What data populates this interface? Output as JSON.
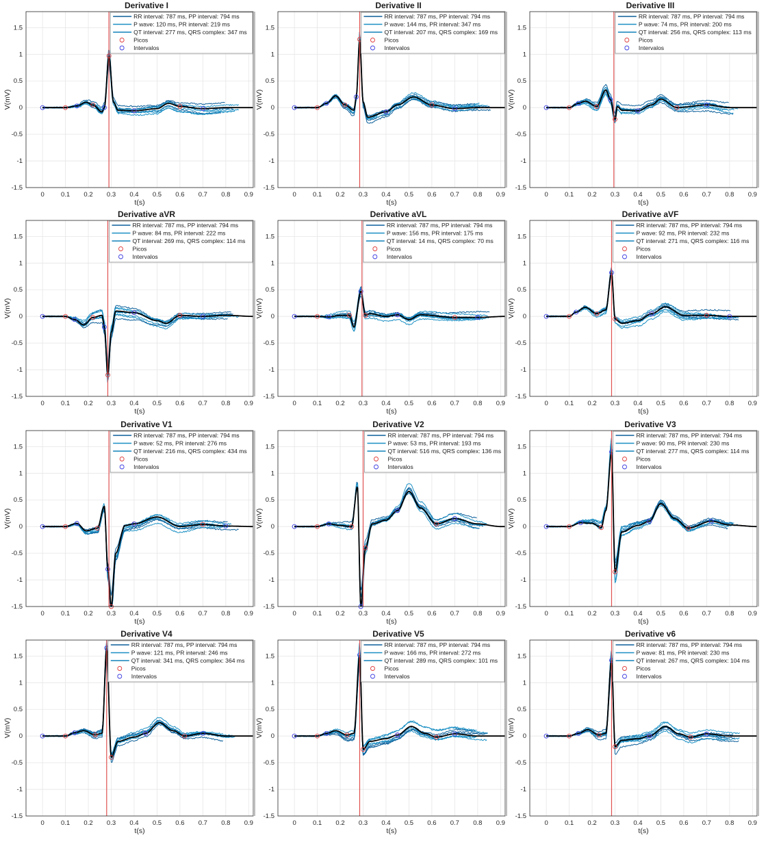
{
  "figure": {
    "xlabel": "t(s)",
    "ylabel": "V(mV)",
    "xticks": [
      "0",
      "0.1",
      "0.2",
      "0.3",
      "0.4",
      "0.5",
      "0.6",
      "0.7",
      "0.8",
      "0.9"
    ],
    "yticks": [
      "1.5",
      "1",
      "0.5",
      "0",
      "-0.5",
      "-1",
      "-1.5"
    ],
    "legend_markers": {
      "picos": "Picos",
      "intervalos": "Intervalos"
    },
    "colors": {
      "trace": "#1a8fc4",
      "trace_dark": "#0b5f9a",
      "mean": "#000000",
      "marker_picos": "#e03c3c",
      "marker_intervalos": "#3c3ce0",
      "vline": "#e05050",
      "grid": "#e6e6e6"
    }
  },
  "chart_data": [
    {
      "type": "line",
      "title": "Derivative I",
      "xlabel": "t(s)",
      "ylabel": "V(mV)",
      "xlim": [
        -0.05,
        0.92
      ],
      "ylim": [
        -1.5,
        1.8
      ],
      "grid": true,
      "legend_position": "northeast",
      "vline_x": 0.29,
      "legend": [
        "RR interval: 787 ms,  PP interval: 794 ms",
        "P wave: 120 ms, PR interval: 219 ms",
        "QT interval: 277 ms,  QRS complex: 347 ms",
        "Picos",
        "Intervalos"
      ],
      "mean_series": {
        "x": [
          0,
          0.1,
          0.15,
          0.19,
          0.22,
          0.26,
          0.27,
          0.29,
          0.31,
          0.33,
          0.4,
          0.5,
          0.55,
          0.6,
          0.7,
          0.8,
          0.92
        ],
        "y": [
          0,
          0,
          0.03,
          0.1,
          0.05,
          -0.08,
          0,
          0.97,
          0.1,
          -0.05,
          -0.06,
          -0.02,
          0.08,
          0.02,
          -0.02,
          0,
          0
        ]
      }
    },
    {
      "type": "line",
      "title": "Derivative II",
      "xlabel": "t(s)",
      "ylabel": "V(mV)",
      "xlim": [
        -0.05,
        0.92
      ],
      "ylim": [
        -1.5,
        1.8
      ],
      "grid": true,
      "legend_position": "northeast",
      "vline_x": 0.285,
      "legend": [
        "RR interval: 787 ms,  PP interval: 794 ms",
        "P wave: 144 ms, PR interval: 347 ms",
        "QT interval: 207 ms,  QRS complex: 169 ms",
        "Picos",
        "Intervalos"
      ],
      "mean_series": {
        "x": [
          0,
          0.1,
          0.14,
          0.18,
          0.22,
          0.26,
          0.27,
          0.285,
          0.3,
          0.32,
          0.4,
          0.45,
          0.52,
          0.6,
          0.7,
          0.8,
          0.92
        ],
        "y": [
          0,
          0,
          0.08,
          0.22,
          0.05,
          -0.05,
          0.2,
          1.28,
          0.1,
          -0.18,
          -0.08,
          0.05,
          0.2,
          0.05,
          -0.02,
          0,
          0
        ]
      }
    },
    {
      "type": "line",
      "title": "Derivative III",
      "xlabel": "t(s)",
      "ylabel": "V(mV)",
      "xlim": [
        -0.05,
        0.92
      ],
      "ylim": [
        -1.5,
        1.8
      ],
      "grid": true,
      "legend_position": "northeast",
      "vline_x": 0.295,
      "legend": [
        "RR interval: 787 ms,  PP interval: 794 ms",
        "P wave: 74 ms, PR interval: 200 ms",
        "QT interval: 256 ms,  QRS complex: 113 ms",
        "Picos",
        "Intervalos"
      ],
      "mean_series": {
        "x": [
          0,
          0.1,
          0.14,
          0.17,
          0.22,
          0.26,
          0.28,
          0.3,
          0.31,
          0.33,
          0.4,
          0.46,
          0.5,
          0.57,
          0.7,
          0.8,
          0.92
        ],
        "y": [
          0,
          0,
          0.08,
          0.12,
          0.02,
          0.33,
          0.15,
          -0.22,
          0.02,
          -0.05,
          -0.06,
          0.05,
          0.16,
          0,
          0.05,
          0,
          0
        ]
      }
    },
    {
      "type": "line",
      "title": "Derivative aVR",
      "xlabel": "t(s)",
      "ylabel": "V(mV)",
      "xlim": [
        -0.05,
        0.92
      ],
      "ylim": [
        -1.5,
        1.8
      ],
      "grid": true,
      "legend_position": "northeast",
      "vline_x": 0.285,
      "legend": [
        "RR interval: 787 ms,  PP interval: 794 ms",
        "P wave: 84 ms, PR interval: 222 ms",
        "QT interval: 269 ms,  QRS complex: 114 ms",
        "Picos",
        "Intervalos"
      ],
      "mean_series": {
        "x": [
          0,
          0.1,
          0.14,
          0.18,
          0.22,
          0.26,
          0.27,
          0.285,
          0.3,
          0.32,
          0.4,
          0.5,
          0.54,
          0.6,
          0.7,
          0.8,
          0.92
        ],
        "y": [
          0,
          0,
          -0.06,
          -0.16,
          -0.02,
          0.02,
          -0.2,
          -1.1,
          -0.3,
          0.1,
          0.07,
          -0.08,
          -0.13,
          0.02,
          0,
          0.02,
          0
        ]
      }
    },
    {
      "type": "line",
      "title": "Derivative aVL",
      "xlabel": "t(s)",
      "ylabel": "V(mV)",
      "xlim": [
        -0.05,
        0.92
      ],
      "ylim": [
        -1.5,
        1.8
      ],
      "grid": true,
      "legend_position": "northeast",
      "vline_x": 0.295,
      "legend": [
        "RR interval: 787 ms,  PP interval: 794 ms",
        "P wave: 156 ms, PR interval: 175 ms",
        "QT interval: 14 ms,  QRS complex: 70 ms",
        "Picos",
        "Intervalos"
      ],
      "mean_series": {
        "x": [
          0,
          0.1,
          0.15,
          0.2,
          0.24,
          0.26,
          0.29,
          0.31,
          0.33,
          0.4,
          0.45,
          0.5,
          0.55,
          0.7,
          0.8,
          0.92
        ],
        "y": [
          0,
          0,
          -0.01,
          0.02,
          0.02,
          -0.2,
          0.47,
          0.02,
          0.05,
          0,
          0.03,
          -0.06,
          0.03,
          -0.02,
          -0.02,
          0
        ]
      }
    },
    {
      "type": "line",
      "title": "Derivative aVF",
      "xlabel": "t(s)",
      "ylabel": "V(mV)",
      "xlim": [
        -0.05,
        0.92
      ],
      "ylim": [
        -1.5,
        1.8
      ],
      "grid": true,
      "legend_position": "northeast",
      "vline_x": 0.285,
      "legend": [
        "RR interval: 787 ms,  PP interval: 794 ms",
        "P wave: 92 ms, PR interval: 232 ms",
        "QT interval: 271 ms,  QRS complex: 116 ms",
        "Picos",
        "Intervalos"
      ],
      "mean_series": {
        "x": [
          0,
          0.1,
          0.13,
          0.17,
          0.22,
          0.26,
          0.285,
          0.3,
          0.33,
          0.4,
          0.46,
          0.52,
          0.6,
          0.7,
          0.8,
          0.92
        ],
        "y": [
          0,
          0,
          0.08,
          0.17,
          0.05,
          0.12,
          0.82,
          -0.05,
          -0.13,
          -0.08,
          0.05,
          0.18,
          0.02,
          0.02,
          0,
          0
        ]
      }
    },
    {
      "type": "line",
      "title": "Derivative V1",
      "xlabel": "t(s)",
      "ylabel": "V(mV)",
      "xlim": [
        -0.05,
        0.92
      ],
      "ylim": [
        -1.5,
        1.8
      ],
      "grid": true,
      "legend_position": "northeast",
      "vline_x": 0.29,
      "legend": [
        "RR interval: 787 ms,  PP interval: 794 ms",
        "P wave: 52 ms, PR interval: 276 ms",
        "QT interval: 216 ms,  QRS complex: 434 ms",
        "Picos",
        "Intervalos"
      ],
      "mean_series": {
        "x": [
          0,
          0.1,
          0.15,
          0.19,
          0.24,
          0.27,
          0.285,
          0.3,
          0.32,
          0.36,
          0.4,
          0.5,
          0.6,
          0.7,
          0.8,
          0.92
        ],
        "y": [
          0,
          0,
          0.06,
          -0.08,
          -0.03,
          0.38,
          -0.8,
          -1.5,
          -0.5,
          0.02,
          0.05,
          0.18,
          0.0,
          0.04,
          0.01,
          0
        ]
      }
    },
    {
      "type": "line",
      "title": "Derivative V2",
      "xlabel": "t(s)",
      "ylabel": "V(mV)",
      "xlim": [
        -0.05,
        0.92
      ],
      "ylim": [
        -1.5,
        1.8
      ],
      "grid": true,
      "legend_position": "northeast",
      "vline_x": 0.3,
      "legend": [
        "RR interval: 787 ms,  PP interval: 794 ms",
        "P wave: 53 ms, PR interval: 193 ms",
        "QT interval: 516 ms,  QRS complex: 136 ms",
        "Picos",
        "Intervalos"
      ],
      "mean_series": {
        "x": [
          0,
          0.1,
          0.15,
          0.2,
          0.25,
          0.275,
          0.29,
          0.31,
          0.34,
          0.4,
          0.45,
          0.5,
          0.55,
          0.62,
          0.7,
          0.8,
          0.9
        ],
        "y": [
          0,
          0,
          0.05,
          0.02,
          0.0,
          0.75,
          -1.5,
          -0.4,
          0.05,
          0.12,
          0.3,
          0.66,
          0.35,
          0.05,
          0.15,
          0.05,
          0
        ]
      }
    },
    {
      "type": "line",
      "title": "Derivative V3",
      "xlabel": "t(s)",
      "ylabel": "V(mV)",
      "xlim": [
        -0.05,
        0.92
      ],
      "ylim": [
        -1.5,
        1.8
      ],
      "grid": true,
      "legend_position": "northeast",
      "vline_x": 0.285,
      "legend": [
        "RR interval: 787 ms,  PP interval: 794 ms",
        "P wave: 90 ms, PR interval: 230 ms",
        "QT interval: 277 ms,  QRS complex: 114 ms",
        "Picos",
        "Intervalos"
      ],
      "mean_series": {
        "x": [
          0,
          0.1,
          0.15,
          0.2,
          0.24,
          0.26,
          0.285,
          0.3,
          0.33,
          0.4,
          0.45,
          0.5,
          0.56,
          0.62,
          0.72,
          0.8,
          0.92
        ],
        "y": [
          0,
          0,
          0.07,
          0.06,
          -0.02,
          0.3,
          1.4,
          -0.85,
          -0.1,
          0.02,
          0.1,
          0.43,
          0.15,
          -0.03,
          0.1,
          0.03,
          0
        ]
      }
    },
    {
      "type": "line",
      "title": "Derivative V4",
      "xlabel": "t(s)",
      "ylabel": "V(mV)",
      "xlim": [
        -0.05,
        0.92
      ],
      "ylim": [
        -1.5,
        1.8
      ],
      "grid": true,
      "legend_position": "northeast",
      "vline_x": 0.28,
      "legend": [
        "RR interval: 787 ms,  PP interval: 794 ms",
        "P wave: 121 ms, PR interval: 246 ms",
        "QT interval: 341 ms,  QRS complex: 364 ms",
        "Picos",
        "Intervalos"
      ],
      "mean_series": {
        "x": [
          0,
          0.1,
          0.14,
          0.18,
          0.23,
          0.26,
          0.28,
          0.3,
          0.33,
          0.4,
          0.45,
          0.51,
          0.57,
          0.62,
          0.7,
          0.8,
          0.92
        ],
        "y": [
          0,
          0,
          0.06,
          0.1,
          0.02,
          0.05,
          1.65,
          -0.4,
          -0.1,
          -0.02,
          0.05,
          0.25,
          0.1,
          0.0,
          0.05,
          0,
          0
        ]
      }
    },
    {
      "type": "line",
      "title": "Derivative V5",
      "xlabel": "t(s)",
      "ylabel": "V(mV)",
      "xlim": [
        -0.05,
        0.92
      ],
      "ylim": [
        -1.5,
        1.8
      ],
      "grid": true,
      "legend_position": "northeast",
      "vline_x": 0.285,
      "legend": [
        "RR interval: 787 ms,  PP interval: 794 ms",
        "P wave: 166 ms, PR interval: 272 ms",
        "QT interval: 289 ms,  QRS complex: 101 ms",
        "Picos",
        "Intervalos"
      ],
      "mean_series": {
        "x": [
          0,
          0.1,
          0.14,
          0.18,
          0.23,
          0.26,
          0.285,
          0.3,
          0.33,
          0.4,
          0.45,
          0.51,
          0.57,
          0.62,
          0.7,
          0.8,
          0.92
        ],
        "y": [
          0,
          0,
          0.05,
          0.1,
          0.02,
          0.05,
          1.52,
          -0.25,
          -0.1,
          -0.05,
          0.02,
          0.18,
          0.05,
          -0.02,
          0.04,
          0,
          0
        ]
      }
    },
    {
      "type": "line",
      "title": "Derivative v6",
      "xlabel": "t(s)",
      "ylabel": "V(mV)",
      "xlim": [
        -0.05,
        0.92
      ],
      "ylim": [
        -1.5,
        1.8
      ],
      "grid": true,
      "legend_position": "northeast",
      "vline_x": 0.285,
      "legend": [
        "RR interval: 787 ms,  PP interval: 794 ms",
        "P wave: 81 ms, PR interval: 230 ms",
        "QT interval: 267 ms,  QRS complex: 104 ms",
        "Picos",
        "Intervalos"
      ],
      "mean_series": {
        "x": [
          0,
          0.1,
          0.14,
          0.18,
          0.23,
          0.26,
          0.285,
          0.3,
          0.33,
          0.4,
          0.45,
          0.52,
          0.58,
          0.63,
          0.7,
          0.8,
          0.92
        ],
        "y": [
          0,
          0,
          0.05,
          0.12,
          0.02,
          0.05,
          1.42,
          -0.2,
          -0.08,
          -0.05,
          0.0,
          0.18,
          0.04,
          -0.02,
          0.04,
          0,
          0
        ]
      }
    }
  ]
}
